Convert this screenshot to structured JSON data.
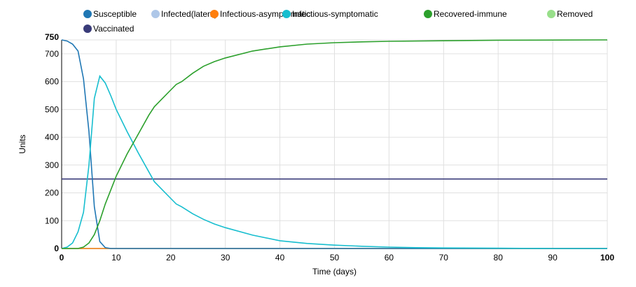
{
  "chart_data": {
    "type": "line",
    "title": "",
    "xlabel": "Time (days)",
    "ylabel": "Units",
    "xlim": [
      0,
      100
    ],
    "ylim": [
      0,
      750
    ],
    "xticks": [
      0,
      10,
      20,
      30,
      40,
      50,
      60,
      70,
      80,
      90,
      100
    ],
    "yticks": [
      0,
      100,
      200,
      300,
      400,
      500,
      600,
      700,
      750
    ],
    "grid": true,
    "legend_position": "top",
    "series": [
      {
        "name": "Susceptible",
        "color": "#1f77b4",
        "x": [
          0,
          1,
          2,
          3,
          4,
          5,
          6,
          7,
          8,
          9,
          100
        ],
        "y": [
          750,
          746,
          735,
          710,
          610,
          420,
          150,
          25,
          3,
          0,
          0
        ]
      },
      {
        "name": "Infected(latent)",
        "color": "#aec7e8",
        "x": [
          0,
          100
        ],
        "y": [
          0,
          0
        ]
      },
      {
        "name": "Infectious-asymptomatic",
        "color": "#ff7f0e",
        "x": [
          0,
          100
        ],
        "y": [
          0,
          0
        ]
      },
      {
        "name": "Infectious-symptomatic",
        "color": "#17becf",
        "x": [
          0,
          1,
          2,
          3,
          4,
          5,
          6,
          7,
          8,
          9,
          10,
          12,
          14,
          16,
          17,
          18,
          20,
          21,
          22,
          24,
          26,
          28,
          30,
          35,
          40,
          45,
          50,
          55,
          60,
          65,
          70,
          80,
          90,
          100
        ],
        "y": [
          0,
          5,
          20,
          60,
          130,
          300,
          540,
          620,
          595,
          550,
          500,
          420,
          345,
          275,
          240,
          220,
          180,
          160,
          150,
          125,
          105,
          88,
          75,
          48,
          28,
          18,
          12,
          8,
          5,
          3,
          2,
          1,
          0,
          0
        ]
      },
      {
        "name": "Recovered-immune",
        "color": "#2ca02c",
        "x": [
          0,
          3,
          4,
          5,
          6,
          7,
          8,
          9,
          10,
          12,
          14,
          16,
          17,
          18,
          20,
          21,
          22,
          24,
          26,
          28,
          30,
          35,
          40,
          45,
          50,
          55,
          60,
          70,
          80,
          100
        ],
        "y": [
          0,
          0,
          5,
          20,
          50,
          100,
          160,
          210,
          260,
          340,
          410,
          480,
          510,
          530,
          570,
          590,
          600,
          630,
          655,
          672,
          685,
          710,
          725,
          735,
          740,
          743,
          745,
          747,
          749,
          750
        ]
      },
      {
        "name": "Removed",
        "color": "#98df8a",
        "x": [
          0,
          100
        ],
        "y": [
          0,
          0
        ]
      },
      {
        "name": "Vaccinated",
        "color": "#393b79",
        "x": [
          0,
          100
        ],
        "y": [
          250,
          250
        ]
      }
    ]
  }
}
